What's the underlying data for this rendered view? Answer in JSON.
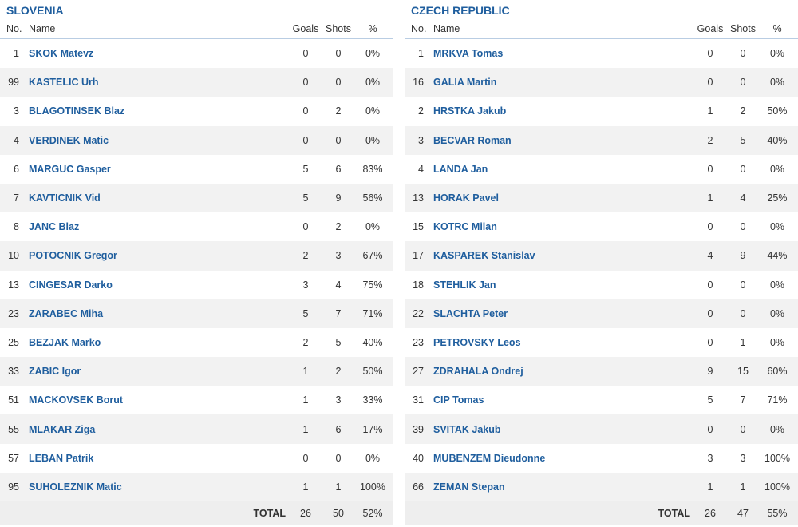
{
  "columns": {
    "no": "No.",
    "name": "Name",
    "goals": "Goals",
    "shots": "Shots",
    "pct": "%"
  },
  "total_label": "TOTAL",
  "left": {
    "team": "SLOVENIA",
    "players": [
      {
        "no": "1",
        "name": "SKOK Matevz",
        "goals": "0",
        "shots": "0",
        "pct": "0%"
      },
      {
        "no": "99",
        "name": "KASTELIC Urh",
        "goals": "0",
        "shots": "0",
        "pct": "0%"
      },
      {
        "no": "3",
        "name": "BLAGOTINSEK Blaz",
        "goals": "0",
        "shots": "2",
        "pct": "0%"
      },
      {
        "no": "4",
        "name": "VERDINEK Matic",
        "goals": "0",
        "shots": "0",
        "pct": "0%"
      },
      {
        "no": "6",
        "name": "MARGUC Gasper",
        "goals": "5",
        "shots": "6",
        "pct": "83%"
      },
      {
        "no": "7",
        "name": "KAVTICNIK Vid",
        "goals": "5",
        "shots": "9",
        "pct": "56%"
      },
      {
        "no": "8",
        "name": "JANC Blaz",
        "goals": "0",
        "shots": "2",
        "pct": "0%"
      },
      {
        "no": "10",
        "name": "POTOCNIK Gregor",
        "goals": "2",
        "shots": "3",
        "pct": "67%"
      },
      {
        "no": "13",
        "name": "CINGESAR Darko",
        "goals": "3",
        "shots": "4",
        "pct": "75%"
      },
      {
        "no": "23",
        "name": "ZARABEC Miha",
        "goals": "5",
        "shots": "7",
        "pct": "71%"
      },
      {
        "no": "25",
        "name": "BEZJAK Marko",
        "goals": "2",
        "shots": "5",
        "pct": "40%"
      },
      {
        "no": "33",
        "name": "ZABIC Igor",
        "goals": "1",
        "shots": "2",
        "pct": "50%"
      },
      {
        "no": "51",
        "name": "MACKOVSEK Borut",
        "goals": "1",
        "shots": "3",
        "pct": "33%"
      },
      {
        "no": "55",
        "name": "MLAKAR Ziga",
        "goals": "1",
        "shots": "6",
        "pct": "17%"
      },
      {
        "no": "57",
        "name": "LEBAN Patrik",
        "goals": "0",
        "shots": "0",
        "pct": "0%"
      },
      {
        "no": "95",
        "name": "SUHOLEZNIK Matic",
        "goals": "1",
        "shots": "1",
        "pct": "100%"
      }
    ],
    "total": {
      "goals": "26",
      "shots": "50",
      "pct": "52%"
    }
  },
  "right": {
    "team": "CZECH REPUBLIC",
    "players": [
      {
        "no": "1",
        "name": "MRKVA Tomas",
        "goals": "0",
        "shots": "0",
        "pct": "0%"
      },
      {
        "no": "16",
        "name": "GALIA Martin",
        "goals": "0",
        "shots": "0",
        "pct": "0%"
      },
      {
        "no": "2",
        "name": "HRSTKA Jakub",
        "goals": "1",
        "shots": "2",
        "pct": "50%"
      },
      {
        "no": "3",
        "name": "BECVAR Roman",
        "goals": "2",
        "shots": "5",
        "pct": "40%"
      },
      {
        "no": "4",
        "name": "LANDA Jan",
        "goals": "0",
        "shots": "0",
        "pct": "0%"
      },
      {
        "no": "13",
        "name": "HORAK Pavel",
        "goals": "1",
        "shots": "4",
        "pct": "25%"
      },
      {
        "no": "15",
        "name": "KOTRC Milan",
        "goals": "0",
        "shots": "0",
        "pct": "0%"
      },
      {
        "no": "17",
        "name": "KASPAREK Stanislav",
        "goals": "4",
        "shots": "9",
        "pct": "44%"
      },
      {
        "no": "18",
        "name": "STEHLIK Jan",
        "goals": "0",
        "shots": "0",
        "pct": "0%"
      },
      {
        "no": "22",
        "name": "SLACHTA Peter",
        "goals": "0",
        "shots": "0",
        "pct": "0%"
      },
      {
        "no": "23",
        "name": "PETROVSKY Leos",
        "goals": "0",
        "shots": "1",
        "pct": "0%"
      },
      {
        "no": "27",
        "name": "ZDRAHALA Ondrej",
        "goals": "9",
        "shots": "15",
        "pct": "60%"
      },
      {
        "no": "31",
        "name": "CIP Tomas",
        "goals": "5",
        "shots": "7",
        "pct": "71%"
      },
      {
        "no": "39",
        "name": "SVITAK Jakub",
        "goals": "0",
        "shots": "0",
        "pct": "0%"
      },
      {
        "no": "40",
        "name": "MUBENZEM Dieudonne",
        "goals": "3",
        "shots": "3",
        "pct": "100%"
      },
      {
        "no": "66",
        "name": "ZEMAN Stepan",
        "goals": "1",
        "shots": "1",
        "pct": "100%"
      }
    ],
    "total": {
      "goals": "26",
      "shots": "47",
      "pct": "55%"
    }
  }
}
